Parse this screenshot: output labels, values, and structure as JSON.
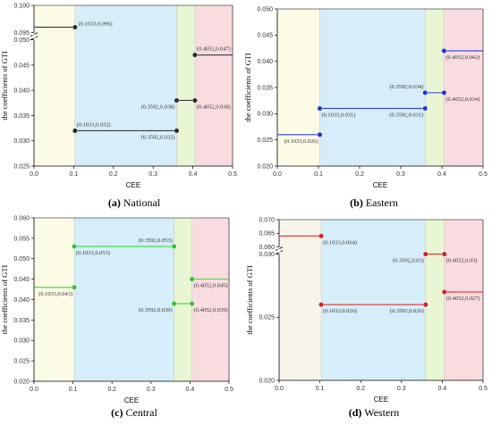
{
  "chart_data": [
    {
      "id": "national",
      "type": "line",
      "panel_tag": "(a)",
      "panel_name": "National",
      "xlabel": "CEE",
      "ylabel": "the coefficients of GTI",
      "xlim": [
        0,
        0.5
      ],
      "x_ticks": [
        "0.0",
        "0.1",
        "0.2",
        "0.3",
        "0.4",
        "0.5"
      ],
      "y_axis_break": true,
      "y_segments": [
        {
          "range": [
            0.025,
            0.05
          ],
          "ticks": [
            "0.025",
            "0.030",
            "0.035",
            "0.040",
            "0.045",
            "0.050"
          ]
        },
        {
          "range": [
            0.095,
            0.1
          ],
          "ticks": [
            "0.095",
            "0.100"
          ]
        }
      ],
      "regime_shading": [
        {
          "x": [
            0,
            0.1033
          ],
          "color": "#fbfbe6"
        },
        {
          "x": [
            0.1033,
            0.3592
          ],
          "color": "#d6eef9"
        },
        {
          "x": [
            0.3592,
            0.4052
          ],
          "color": "#e8f6d3"
        },
        {
          "x": [
            0.4052,
            0.5
          ],
          "color": "#f8dcdf"
        }
      ],
      "line_color": "#3a3a3a",
      "marker_color": "#2b2b2b",
      "segments": [
        {
          "x": [
            0,
            0.1033
          ],
          "y": 0.096
        },
        {
          "x": [
            0.1033,
            0.3592
          ],
          "y": 0.032
        },
        {
          "x": [
            0.3592,
            0.4052
          ],
          "y": 0.038
        },
        {
          "x": [
            0.4052,
            0.5
          ],
          "y": 0.047
        }
      ],
      "points": [
        {
          "x": 0.1033,
          "y": 0.096,
          "label": "(0.1033,0.096)",
          "pos": "right"
        },
        {
          "x": 0.1033,
          "y": 0.032,
          "label": "(0.1033,0.032)",
          "pos": "above-right"
        },
        {
          "x": 0.3592,
          "y": 0.032,
          "label": "(0.3592,0.032)",
          "pos": "below-left"
        },
        {
          "x": 0.3592,
          "y": 0.038,
          "label": "(0.3592,0.038)",
          "pos": "below-left"
        },
        {
          "x": 0.4052,
          "y": 0.038,
          "label": "(0.4052,0.038)",
          "pos": "below-right"
        },
        {
          "x": 0.4052,
          "y": 0.047,
          "label": "(0.4052,0.047)",
          "pos": "above-right"
        }
      ]
    },
    {
      "id": "eastern",
      "type": "line",
      "panel_tag": "(b)",
      "panel_name": "Eastern",
      "xlabel": "CEE",
      "ylabel": "the coefficients of GTI",
      "xlim": [
        0,
        0.5
      ],
      "x_ticks": [
        "0.0",
        "0.1",
        "0.2",
        "0.3",
        "0.4",
        "0.5"
      ],
      "y_axis_break": false,
      "y_segments": [
        {
          "range": [
            0.02,
            0.05
          ],
          "ticks": [
            "0.020",
            "0.025",
            "0.030",
            "0.035",
            "0.040",
            "0.045",
            "0.050"
          ]
        }
      ],
      "regime_shading": [
        {
          "x": [
            0,
            0.1033
          ],
          "color": "#fbfbe6"
        },
        {
          "x": [
            0.1033,
            0.3592
          ],
          "color": "#d6eef9"
        },
        {
          "x": [
            0.3592,
            0.4052
          ],
          "color": "#e8f6d3"
        },
        {
          "x": [
            0.4052,
            0.5
          ],
          "color": "#f8dcdf"
        }
      ],
      "line_color": "#2f3fd9",
      "marker_color": "#2233cc",
      "segments": [
        {
          "x": [
            0,
            0.1033
          ],
          "y": 0.026
        },
        {
          "x": [
            0.1033,
            0.3592
          ],
          "y": 0.031
        },
        {
          "x": [
            0.3592,
            0.4052
          ],
          "y": 0.034
        },
        {
          "x": [
            0.4052,
            0.5
          ],
          "y": 0.042
        }
      ],
      "points": [
        {
          "x": 0.1033,
          "y": 0.026,
          "label": "(0.1033,0.026)",
          "pos": "below-left"
        },
        {
          "x": 0.1033,
          "y": 0.031,
          "label": "(0.1033,0.031)",
          "pos": "below-right"
        },
        {
          "x": 0.3592,
          "y": 0.031,
          "label": "(0.3592,0.031)",
          "pos": "below-left"
        },
        {
          "x": 0.3592,
          "y": 0.034,
          "label": "(0.3592,0.034)",
          "pos": "above-left"
        },
        {
          "x": 0.4052,
          "y": 0.034,
          "label": "(0.4052,0.034)",
          "pos": "below-right"
        },
        {
          "x": 0.4052,
          "y": 0.042,
          "label": "(0.4052,0.042)",
          "pos": "below-right"
        }
      ]
    },
    {
      "id": "central",
      "type": "line",
      "panel_tag": "(c)",
      "panel_name": "Central",
      "xlabel": "CEE",
      "ylabel": "the coefficients of GTI",
      "xlim": [
        0,
        0.5
      ],
      "x_ticks": [
        "0.0",
        "0.1",
        "0.2",
        "0.3",
        "0.4",
        "0.5"
      ],
      "y_axis_break": false,
      "y_segments": [
        {
          "range": [
            0.02,
            0.06
          ],
          "ticks": [
            "0.020",
            "0.025",
            "0.030",
            "0.035",
            "0.040",
            "0.045",
            "0.050",
            "0.055",
            "0.060"
          ]
        }
      ],
      "regime_shading": [
        {
          "x": [
            0,
            0.1033
          ],
          "color": "#fbfbe6"
        },
        {
          "x": [
            0.1033,
            0.3592
          ],
          "color": "#d6eef9"
        },
        {
          "x": [
            0.3592,
            0.4052
          ],
          "color": "#e8f6d3"
        },
        {
          "x": [
            0.4052,
            0.5
          ],
          "color": "#f8dcdf"
        }
      ],
      "line_color": "#3fd13f",
      "marker_color": "#2fc42f",
      "segments": [
        {
          "x": [
            0,
            0.1033
          ],
          "y": 0.043
        },
        {
          "x": [
            0.1033,
            0.3592
          ],
          "y": 0.053
        },
        {
          "x": [
            0.3592,
            0.4052
          ],
          "y": 0.039
        },
        {
          "x": [
            0.4052,
            0.5
          ],
          "y": 0.045
        }
      ],
      "points": [
        {
          "x": 0.1033,
          "y": 0.043,
          "label": "(0.1033,0.043)",
          "pos": "below-left"
        },
        {
          "x": 0.1033,
          "y": 0.053,
          "label": "(0.1033,0.053)",
          "pos": "below-right"
        },
        {
          "x": 0.3592,
          "y": 0.053,
          "label": "(0.3592,0.053)",
          "pos": "above-left"
        },
        {
          "x": 0.3592,
          "y": 0.039,
          "label": "(0.3592,0.039)",
          "pos": "below-left"
        },
        {
          "x": 0.4052,
          "y": 0.039,
          "label": "(0.4052,0.039)",
          "pos": "below-right"
        },
        {
          "x": 0.4052,
          "y": 0.045,
          "label": "(0.4052,0.045)",
          "pos": "below-right"
        }
      ]
    },
    {
      "id": "western",
      "type": "line",
      "panel_tag": "(d)",
      "panel_name": "Western",
      "xlabel": "CEE",
      "ylabel": "the coefficients of GTI",
      "xlim": [
        0,
        0.5
      ],
      "x_ticks": [
        "0.0",
        "0.1",
        "0.2",
        "0.3",
        "0.4",
        "0.5"
      ],
      "y_axis_break": true,
      "y_segments": [
        {
          "range": [
            0.02,
            0.03
          ],
          "ticks": [
            "0.020",
            "0.025",
            "0.030"
          ]
        },
        {
          "range": [
            0.06,
            0.07
          ],
          "ticks": [
            "0.060",
            "0.065",
            "0.070"
          ]
        }
      ],
      "regime_shading": [
        {
          "x": [
            0,
            0.1033
          ],
          "color": "#f7f5ea"
        },
        {
          "x": [
            0.1033,
            0.3592
          ],
          "color": "#d6eef9"
        },
        {
          "x": [
            0.3592,
            0.4052
          ],
          "color": "#e8f6d3"
        },
        {
          "x": [
            0.4052,
            0.5
          ],
          "color": "#f8dcdf"
        }
      ],
      "line_color": "#e03030",
      "marker_color": "#d42020",
      "segments": [
        {
          "x": [
            0,
            0.1033
          ],
          "y": 0.064
        },
        {
          "x": [
            0.1033,
            0.3592
          ],
          "y": 0.026
        },
        {
          "x": [
            0.3592,
            0.4052
          ],
          "y": 0.03
        },
        {
          "x": [
            0.4052,
            0.5
          ],
          "y": 0.027
        }
      ],
      "points": [
        {
          "x": 0.1033,
          "y": 0.064,
          "label": "(0.1033,0.064)",
          "pos": "below-right"
        },
        {
          "x": 0.1033,
          "y": 0.026,
          "label": "(0.1033,0.026)",
          "pos": "below-right"
        },
        {
          "x": 0.3592,
          "y": 0.026,
          "label": "(0.3592,0.026)",
          "pos": "below-left"
        },
        {
          "x": 0.3592,
          "y": 0.03,
          "label": "(0.3592,0.03)",
          "pos": "below-left"
        },
        {
          "x": 0.4052,
          "y": 0.03,
          "label": "(0.4052,0.03)",
          "pos": "below-right"
        },
        {
          "x": 0.4052,
          "y": 0.027,
          "label": "(0.4052,0.027)",
          "pos": "below-right"
        }
      ]
    }
  ]
}
